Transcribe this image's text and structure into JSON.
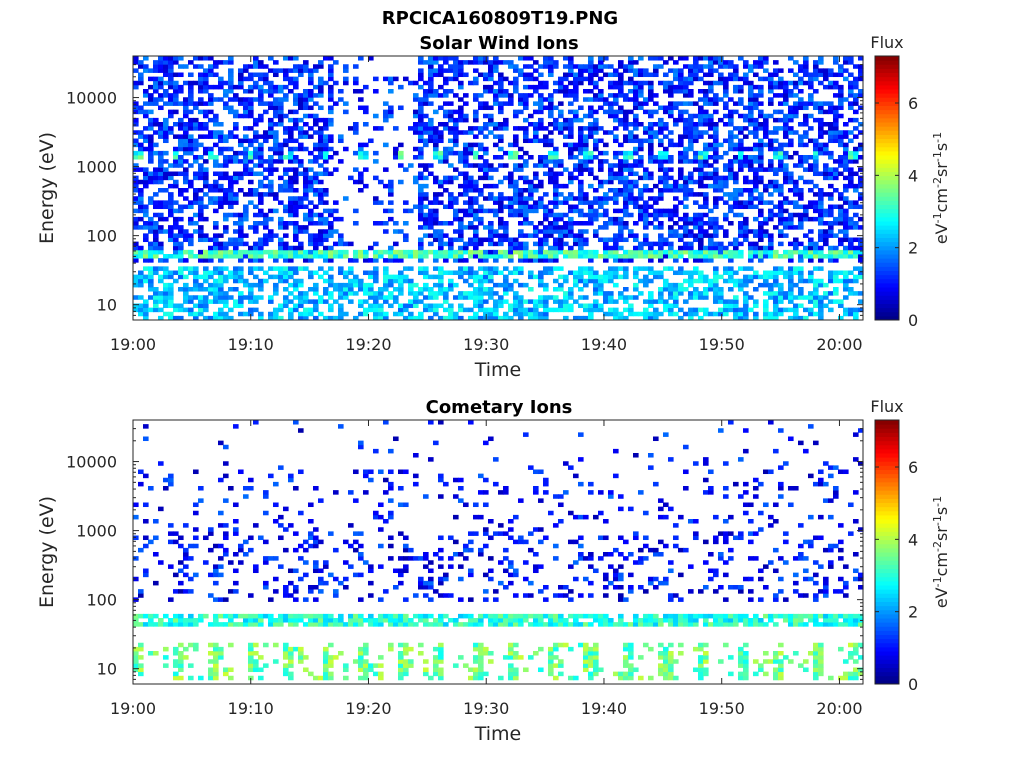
{
  "figure": {
    "title": "RPCICA160809T19.PNG"
  },
  "chart_data": [
    {
      "type": "heatmap",
      "title": "Solar Wind Ions",
      "xlabel": "Time",
      "ylabel": "Energy (eV)",
      "x_ticks": [
        "19:00",
        "19:10",
        "19:20",
        "19:30",
        "19:40",
        "19:50",
        "20:00"
      ],
      "x_range": [
        "19:00",
        "20:02"
      ],
      "y_scale": "log",
      "y_ticks": [
        10,
        100,
        1000,
        10000
      ],
      "y_tick_labels": [
        "10",
        "100",
        "1000",
        "10000"
      ],
      "ylim": [
        6,
        40000
      ],
      "colorbar": {
        "title": "Flux",
        "label": "eV-1cm-2sr-1s-1",
        "ticks": [
          0,
          2,
          4,
          6
        ],
        "range": [
          0,
          7.3
        ],
        "colormap": "jet"
      },
      "features": [
        {
          "label": "dense low-level background",
          "energy_ev": [
            6,
            40000
          ],
          "time": [
            "19:00",
            "20:02"
          ],
          "flux": 1.2
        },
        {
          "label": "sparse interval",
          "energy_ev": [
            50,
            40000
          ],
          "time": [
            "19:17",
            "19:24"
          ],
          "flux": 1.0
        },
        {
          "label": "band near 50 eV",
          "energy_ev": [
            45,
            60
          ],
          "time": [
            "19:00",
            "20:02"
          ],
          "flux": 3.2
        },
        {
          "label": "periodic spots near 1500 eV",
          "energy_ev": [
            1300,
            1800
          ],
          "time": [
            "19:00",
            "20:02"
          ],
          "period_min": 3.2,
          "flux": 3.0
        },
        {
          "label": "low-energy patches",
          "energy_ev": [
            6,
            35
          ],
          "time": [
            "19:00",
            "20:02"
          ],
          "flux": 2.3
        }
      ]
    },
    {
      "type": "heatmap",
      "title": "Cometary Ions",
      "xlabel": "Time",
      "ylabel": "Energy (eV)",
      "x_ticks": [
        "19:00",
        "19:10",
        "19:20",
        "19:30",
        "19:40",
        "19:50",
        "20:00"
      ],
      "x_range": [
        "19:00",
        "20:02"
      ],
      "y_scale": "log",
      "y_ticks": [
        10,
        100,
        1000,
        10000
      ],
      "y_tick_labels": [
        "10",
        "100",
        "1000",
        "10000"
      ],
      "ylim": [
        6,
        40000
      ],
      "colorbar": {
        "title": "Flux",
        "label": "eV-1cm-2sr-1s-1",
        "ticks": [
          0,
          2,
          4,
          6
        ],
        "range": [
          0,
          7.3
        ],
        "colormap": "jet"
      },
      "features": [
        {
          "label": "sparse high-energy background",
          "energy_ev": [
            100,
            40000
          ],
          "time": [
            "19:00",
            "20:02"
          ],
          "flux": 1.0
        },
        {
          "label": "band near 50 eV",
          "energy_ev": [
            40,
            60
          ],
          "time": [
            "19:00",
            "20:02"
          ],
          "flux": 3.0
        },
        {
          "label": "periodic low-energy pulses",
          "energy_ev": [
            7,
            25
          ],
          "time": [
            "19:00",
            "20:02"
          ],
          "period_min": 3.2,
          "flux": 3.5
        }
      ]
    }
  ]
}
